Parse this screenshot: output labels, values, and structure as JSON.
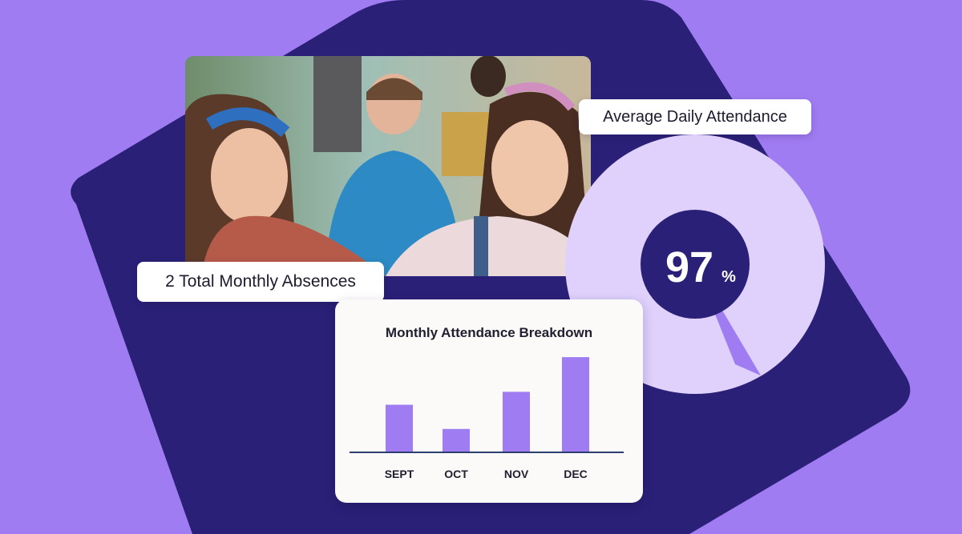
{
  "colors": {
    "background": "#a07cf2",
    "navy": "#2a2077",
    "donut_light": "#dfd0fc",
    "donut_sliver": "#a07cf2",
    "bar": "#a07cf2",
    "axis": "#2c3e6e"
  },
  "hero_image": {
    "description_icon": "classroom-photo"
  },
  "attendance_label": "Average Daily Attendance",
  "attendance_value": "97",
  "attendance_unit": "%",
  "absences_label": "2 Total Monthly Absences",
  "chart_data": {
    "type": "bar",
    "title": "Monthly Attendance Breakdown",
    "categories": [
      "SEPT",
      "OCT",
      "NOV",
      "DEC"
    ],
    "values": [
      59,
      29,
      75,
      118
    ],
    "xlabel": "",
    "ylabel": "",
    "ylim": [
      0,
      130
    ],
    "grid": false
  }
}
